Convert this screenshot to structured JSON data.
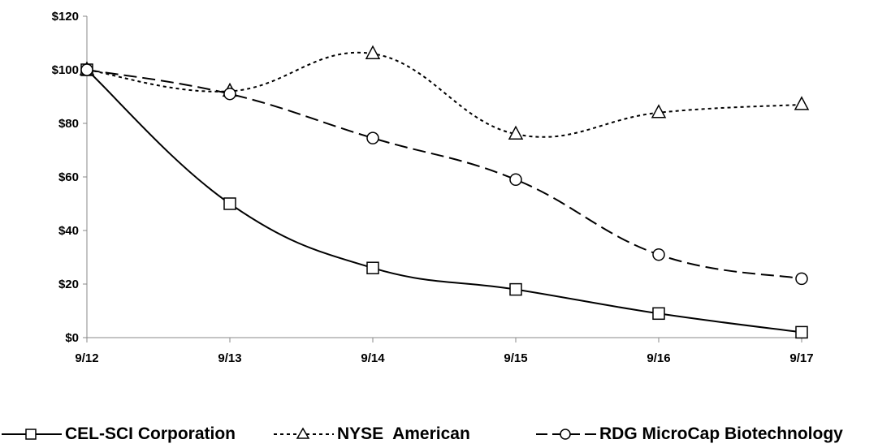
{
  "chart_data": {
    "type": "line",
    "categories": [
      "9/12",
      "9/13",
      "9/14",
      "9/15",
      "9/16",
      "9/17"
    ],
    "y_ticks": [
      "$0",
      "$20",
      "$40",
      "$60",
      "$80",
      "$100",
      "$120"
    ],
    "ylim": [
      0,
      120
    ],
    "grid": false,
    "legend_position": "bottom",
    "series": [
      {
        "name": "CEL-SCI Corporation",
        "values": [
          100,
          50,
          26,
          18,
          9,
          2
        ],
        "marker": "square",
        "line_style": "solid"
      },
      {
        "name": "NYSE  American",
        "values": [
          100,
          92,
          106,
          76,
          84,
          87
        ],
        "marker": "triangle",
        "line_style": "dotted"
      },
      {
        "name": "RDG MicroCap Biotechnology",
        "values": [
          100,
          91,
          74.5,
          59,
          31,
          22
        ],
        "marker": "circle",
        "line_style": "dashed"
      }
    ]
  }
}
